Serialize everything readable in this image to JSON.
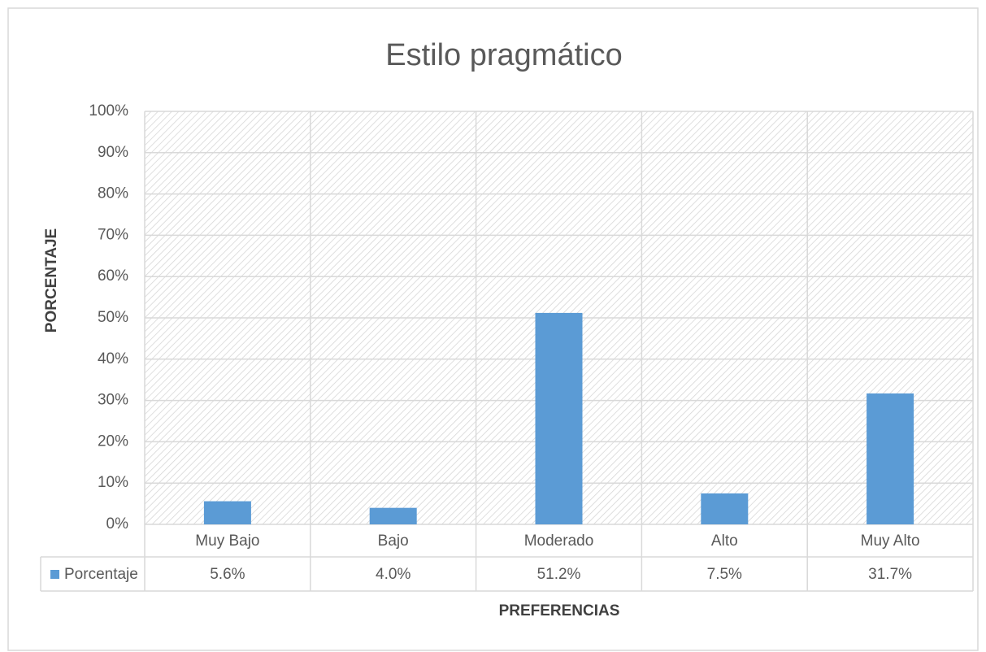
{
  "chart_data": {
    "type": "bar",
    "title": "Estilo pragmático",
    "x_label": "PREFERENCIAS",
    "y_label": "PORCENTAJE",
    "categories": [
      "Muy Bajo",
      "Bajo",
      "Moderado",
      "Alto",
      "Muy Alto"
    ],
    "series": [
      {
        "name": "Porcentaje",
        "color": "#5b9bd5",
        "values": [
          5.6,
          4.0,
          51.2,
          7.5,
          31.7
        ],
        "value_labels": [
          "5.6%",
          "4.0%",
          "51.2%",
          "7.5%",
          "31.7%"
        ]
      }
    ],
    "ylim": [
      0,
      100
    ],
    "yticks": [
      {
        "value": 0,
        "label": "0%"
      },
      {
        "value": 10,
        "label": "10%"
      },
      {
        "value": 20,
        "label": "20%"
      },
      {
        "value": 30,
        "label": "30%"
      },
      {
        "value": 40,
        "label": "40%"
      },
      {
        "value": 50,
        "label": "50%"
      },
      {
        "value": 60,
        "label": "60%"
      },
      {
        "value": 70,
        "label": "70%"
      },
      {
        "value": 80,
        "label": "80%"
      },
      {
        "value": 90,
        "label": "90%"
      },
      {
        "value": 100,
        "label": "100%"
      }
    ],
    "grid": true,
    "data_table": true
  }
}
